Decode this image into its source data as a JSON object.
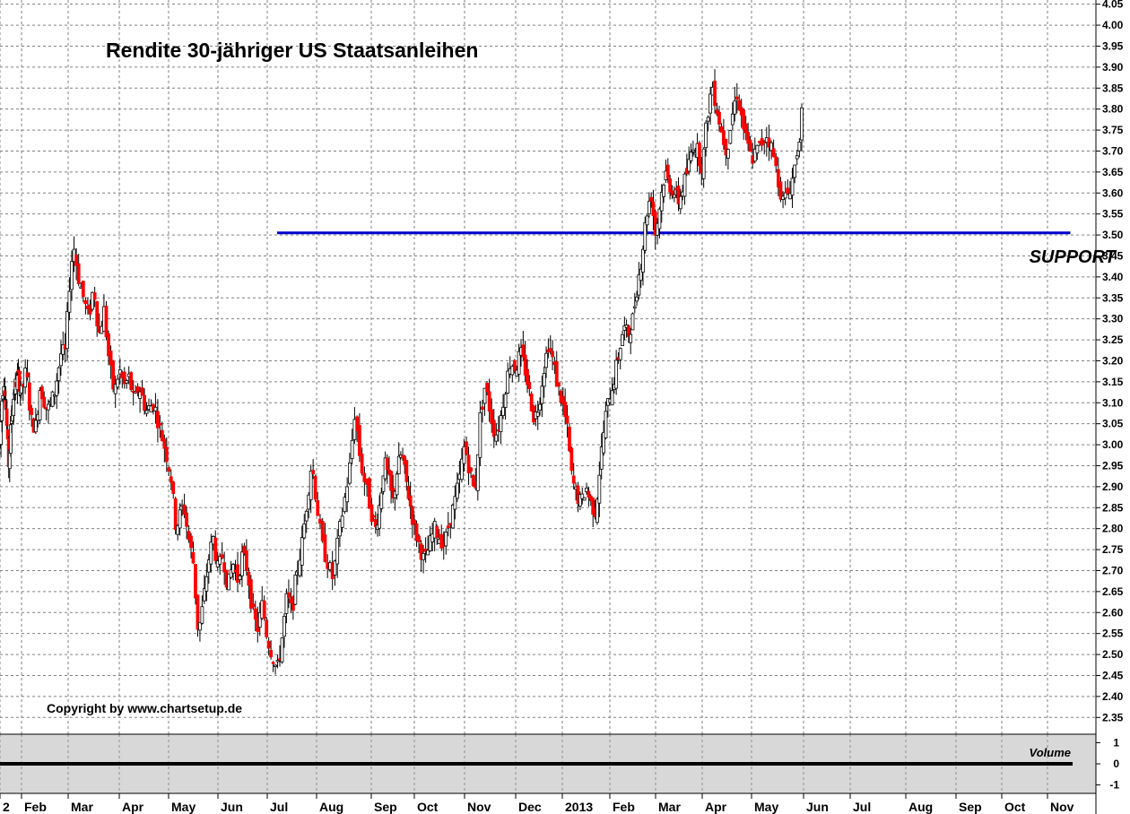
{
  "chart_data": {
    "type": "candlestick",
    "title": "Rendite 30-jähriger US Staatsanleihen",
    "copyright": "Copyright by www.chartsetup.de",
    "annotations": [
      {
        "text": "SUPPORT",
        "x_month_index": 21.6,
        "y": 3.46
      }
    ],
    "support_line": {
      "y": 3.505,
      "from_month_index": 6.2,
      "to_month_index": 22.5
    },
    "ylim": [
      2.31,
      4.06
    ],
    "y_ticks": [
      "4.05",
      "4.00",
      "3.95",
      "3.90",
      "3.85",
      "3.80",
      "3.75",
      "3.70",
      "3.65",
      "3.60",
      "3.55",
      "3.50",
      "3.45",
      "3.40",
      "3.35",
      "3.30",
      "3.25",
      "3.20",
      "3.15",
      "3.10",
      "3.05",
      "3.00",
      "2.95",
      "2.90",
      "2.85",
      "2.80",
      "2.75",
      "2.70",
      "2.65",
      "2.60",
      "2.55",
      "2.50",
      "2.45",
      "2.40",
      "2.35"
    ],
    "x_ticks": [
      "2",
      "Feb",
      "Mar",
      "Apr",
      "May",
      "Jun",
      "Jul",
      "Aug",
      "Sep",
      "Oct",
      "Nov",
      "Dec",
      "2013",
      "Feb",
      "Mar",
      "Apr",
      "May",
      "Jun",
      "Jul",
      "Aug",
      "Sep",
      "Oct",
      "Nov"
    ],
    "colors": {
      "up": "#000000",
      "down": "#ff0000",
      "support": "#0000cc",
      "grid": "#808080",
      "volume_bg": "#d8d8d8"
    },
    "grid": true,
    "close_path": [
      [
        0.0,
        3.0
      ],
      [
        0.1,
        3.12
      ],
      [
        0.2,
        3.16
      ],
      [
        0.3,
        3.06
      ],
      [
        0.4,
        2.95
      ],
      [
        0.55,
        3.08
      ],
      [
        0.7,
        3.14
      ],
      [
        0.85,
        3.16
      ],
      [
        1.0,
        3.12
      ],
      [
        1.1,
        3.18
      ],
      [
        1.2,
        3.06
      ],
      [
        1.3,
        3.04
      ],
      [
        1.4,
        3.14
      ],
      [
        1.55,
        3.08
      ],
      [
        1.7,
        3.12
      ],
      [
        1.85,
        3.22
      ],
      [
        1.95,
        3.22
      ],
      [
        2.0,
        3.35
      ],
      [
        2.1,
        3.48
      ],
      [
        2.2,
        3.4
      ],
      [
        2.3,
        3.35
      ],
      [
        2.4,
        3.3
      ],
      [
        2.5,
        3.38
      ],
      [
        2.6,
        3.26
      ],
      [
        2.7,
        3.32
      ],
      [
        2.8,
        3.2
      ],
      [
        2.9,
        3.12
      ],
      [
        3.0,
        3.18
      ],
      [
        3.1,
        3.14
      ],
      [
        3.2,
        3.16
      ],
      [
        3.3,
        3.1
      ],
      [
        3.4,
        3.14
      ],
      [
        3.55,
        3.08
      ],
      [
        3.7,
        3.1
      ],
      [
        3.8,
        3.05
      ],
      [
        3.95,
        2.98
      ],
      [
        4.05,
        2.92
      ],
      [
        4.15,
        2.8
      ],
      [
        4.3,
        2.86
      ],
      [
        4.4,
        2.78
      ],
      [
        4.5,
        2.72
      ],
      [
        4.6,
        2.55
      ],
      [
        4.7,
        2.62
      ],
      [
        4.8,
        2.72
      ],
      [
        4.9,
        2.78
      ],
      [
        5.0,
        2.7
      ],
      [
        5.1,
        2.74
      ],
      [
        5.2,
        2.66
      ],
      [
        5.3,
        2.72
      ],
      [
        5.4,
        2.68
      ],
      [
        5.5,
        2.74
      ],
      [
        5.6,
        2.7
      ],
      [
        5.7,
        2.6
      ],
      [
        5.8,
        2.56
      ],
      [
        5.9,
        2.62
      ],
      [
        6.0,
        2.54
      ],
      [
        6.1,
        2.5
      ],
      [
        6.2,
        2.46
      ],
      [
        6.3,
        2.54
      ],
      [
        6.4,
        2.64
      ],
      [
        6.5,
        2.6
      ],
      [
        6.6,
        2.7
      ],
      [
        6.7,
        2.76
      ],
      [
        6.8,
        2.86
      ],
      [
        6.9,
        2.96
      ],
      [
        7.0,
        2.86
      ],
      [
        7.1,
        2.76
      ],
      [
        7.2,
        2.72
      ],
      [
        7.3,
        2.68
      ],
      [
        7.4,
        2.78
      ],
      [
        7.5,
        2.86
      ],
      [
        7.6,
        2.94
      ],
      [
        7.7,
        3.08
      ],
      [
        7.8,
        2.96
      ],
      [
        7.9,
        2.9
      ],
      [
        8.0,
        2.84
      ],
      [
        8.1,
        2.8
      ],
      [
        8.2,
        2.86
      ],
      [
        8.3,
        2.96
      ],
      [
        8.4,
        2.92
      ],
      [
        8.5,
        2.86
      ],
      [
        8.6,
        2.94
      ],
      [
        8.7,
        2.98
      ],
      [
        8.8,
        2.92
      ],
      [
        8.9,
        2.86
      ],
      [
        9.0,
        2.8
      ],
      [
        9.1,
        2.76
      ],
      [
        9.2,
        2.72
      ],
      [
        9.3,
        2.76
      ],
      [
        9.4,
        2.8
      ],
      [
        9.5,
        2.78
      ],
      [
        9.6,
        2.76
      ],
      [
        9.7,
        2.82
      ],
      [
        9.8,
        2.86
      ],
      [
        9.9,
        2.92
      ],
      [
        10.0,
        3.0
      ],
      [
        10.1,
        2.94
      ],
      [
        10.2,
        2.88
      ],
      [
        10.3,
        3.06
      ],
      [
        10.4,
        3.14
      ],
      [
        10.5,
        3.08
      ],
      [
        10.6,
        3.02
      ],
      [
        10.7,
        3.06
      ],
      [
        10.8,
        3.14
      ],
      [
        10.9,
        3.2
      ],
      [
        11.0,
        3.18
      ],
      [
        11.1,
        3.22
      ],
      [
        11.2,
        3.18
      ],
      [
        11.3,
        3.12
      ],
      [
        11.4,
        3.06
      ],
      [
        11.5,
        3.1
      ],
      [
        11.6,
        3.18
      ],
      [
        11.7,
        3.24
      ],
      [
        11.8,
        3.2
      ],
      [
        11.9,
        3.14
      ],
      [
        12.0,
        3.1
      ],
      [
        12.1,
        3.04
      ],
      [
        12.2,
        2.92
      ],
      [
        12.3,
        2.88
      ],
      [
        12.4,
        2.86
      ],
      [
        12.5,
        2.9
      ],
      [
        12.6,
        2.86
      ],
      [
        12.7,
        2.84
      ],
      [
        12.8,
        2.96
      ],
      [
        12.9,
        3.06
      ],
      [
        13.0,
        3.12
      ],
      [
        13.1,
        3.16
      ],
      [
        13.2,
        3.22
      ],
      [
        13.3,
        3.28
      ],
      [
        13.4,
        3.26
      ],
      [
        13.5,
        3.3
      ],
      [
        13.6,
        3.38
      ],
      [
        13.7,
        3.45
      ],
      [
        13.8,
        3.55
      ],
      [
        13.9,
        3.6
      ],
      [
        14.0,
        3.5
      ],
      [
        14.1,
        3.58
      ],
      [
        14.2,
        3.65
      ],
      [
        14.3,
        3.62
      ],
      [
        14.4,
        3.6
      ],
      [
        14.5,
        3.58
      ],
      [
        14.6,
        3.62
      ],
      [
        14.7,
        3.66
      ],
      [
        14.8,
        3.72
      ],
      [
        14.9,
        3.7
      ],
      [
        15.0,
        3.66
      ],
      [
        15.1,
        3.78
      ],
      [
        15.2,
        3.86
      ],
      [
        15.3,
        3.8
      ],
      [
        15.4,
        3.74
      ],
      [
        15.5,
        3.7
      ],
      [
        15.6,
        3.78
      ],
      [
        15.7,
        3.84
      ],
      [
        15.8,
        3.78
      ],
      [
        15.9,
        3.72
      ],
      [
        16.0,
        3.68
      ],
      [
        16.1,
        3.7
      ],
      [
        16.2,
        3.72
      ],
      [
        16.3,
        3.74
      ],
      [
        16.4,
        3.7
      ],
      [
        16.5,
        3.64
      ],
      [
        16.6,
        3.58
      ],
      [
        16.7,
        3.6
      ],
      [
        16.8,
        3.64
      ],
      [
        16.9,
        3.72
      ],
      [
        17.0,
        3.82
      ]
    ],
    "volume_axis_ticks": [
      "1",
      "0",
      "-1"
    ],
    "volume_label": "Volume",
    "volume_ylim": [
      -1.4,
      1.4
    ],
    "volume_level": 0
  }
}
